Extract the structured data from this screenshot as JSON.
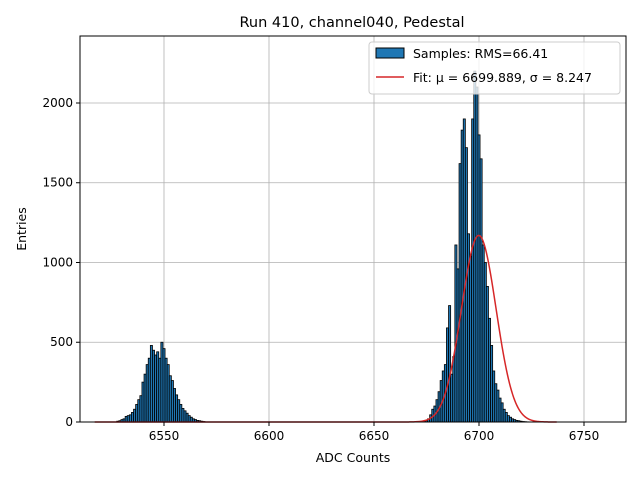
{
  "chart_data": {
    "type": "bar",
    "title": "Run 410, channel040, Pedestal",
    "xlabel": "ADC Counts",
    "ylabel": "Entries",
    "xlim": [
      6510,
      6770
    ],
    "ylim": [
      0,
      2420
    ],
    "xticks": [
      6550,
      6600,
      6650,
      6700,
      6750
    ],
    "yticks": [
      0,
      500,
      1000,
      1500,
      2000
    ],
    "grid": true,
    "legend_position": "top-right",
    "bin_width": 1,
    "series": [
      {
        "name": "Samples: RMS=66.41",
        "kind": "histogram",
        "color": "#1f77b4",
        "edgecolor": "#000000",
        "x": [
          6528,
          6529,
          6530,
          6531,
          6532,
          6533,
          6534,
          6535,
          6536,
          6537,
          6538,
          6539,
          6540,
          6541,
          6542,
          6543,
          6544,
          6545,
          6546,
          6547,
          6548,
          6549,
          6550,
          6551,
          6552,
          6553,
          6554,
          6555,
          6556,
          6557,
          6558,
          6559,
          6560,
          6561,
          6562,
          6563,
          6564,
          6565,
          6566,
          6567,
          6568,
          6569,
          6674,
          6675,
          6676,
          6677,
          6678,
          6679,
          6680,
          6681,
          6682,
          6683,
          6684,
          6685,
          6686,
          6687,
          6688,
          6689,
          6690,
          6691,
          6692,
          6693,
          6694,
          6695,
          6696,
          6697,
          6698,
          6699,
          6700,
          6701,
          6702,
          6703,
          6704,
          6705,
          6706,
          6707,
          6708,
          6709,
          6710,
          6711,
          6712,
          6713,
          6714,
          6715,
          6716,
          6717,
          6718,
          6719,
          6720,
          6721,
          6722,
          6723
        ],
        "values": [
          5,
          8,
          15,
          20,
          35,
          40,
          45,
          60,
          80,
          110,
          140,
          165,
          250,
          300,
          360,
          400,
          480,
          450,
          420,
          440,
          400,
          500,
          460,
          400,
          360,
          290,
          260,
          210,
          170,
          140,
          110,
          85,
          70,
          55,
          40,
          30,
          20,
          15,
          10,
          8,
          5,
          3,
          5,
          8,
          20,
          45,
          80,
          100,
          140,
          190,
          260,
          320,
          360,
          590,
          730,
          300,
          410,
          1110,
          960,
          1620,
          1830,
          1900,
          1720,
          1180,
          1040,
          1900,
          2200,
          2100,
          1800,
          1650,
          1110,
          1000,
          850,
          650,
          480,
          320,
          240,
          200,
          150,
          120,
          80,
          60,
          40,
          30,
          20,
          15,
          10,
          8,
          5,
          3,
          2,
          1
        ]
      },
      {
        "name": "Fit: μ = 6699.889, σ = 8.247",
        "kind": "gaussian-fit",
        "color": "#d62728",
        "mu": 6699.889,
        "sigma": 8.247,
        "amplitude": 1170,
        "x_range": [
          6517,
          6737
        ]
      }
    ]
  }
}
